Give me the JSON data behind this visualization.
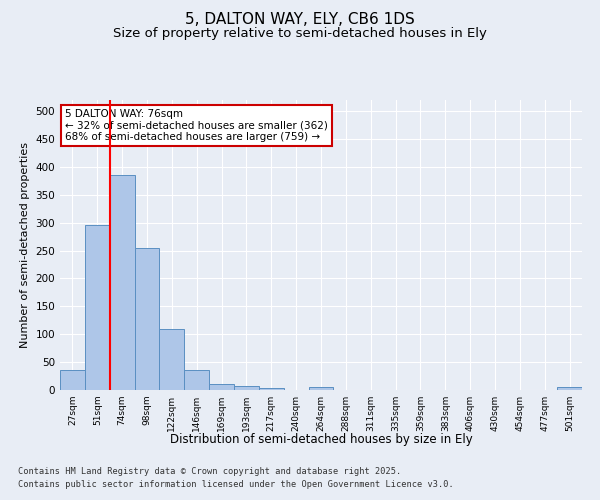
{
  "title": "5, DALTON WAY, ELY, CB6 1DS",
  "subtitle": "Size of property relative to semi-detached houses in Ely",
  "xlabel": "Distribution of semi-detached houses by size in Ely",
  "ylabel": "Number of semi-detached properties",
  "categories": [
    "27sqm",
    "51sqm",
    "74sqm",
    "98sqm",
    "122sqm",
    "146sqm",
    "169sqm",
    "193sqm",
    "217sqm",
    "240sqm",
    "264sqm",
    "288sqm",
    "311sqm",
    "335sqm",
    "359sqm",
    "383sqm",
    "406sqm",
    "430sqm",
    "454sqm",
    "477sqm",
    "501sqm"
  ],
  "values": [
    35,
    295,
    385,
    255,
    110,
    35,
    10,
    7,
    4,
    0,
    5,
    0,
    0,
    0,
    0,
    0,
    0,
    0,
    0,
    0,
    5
  ],
  "bar_color": "#aec6e8",
  "bar_edge_color": "#5a8fc2",
  "red_line_bin": 2,
  "annotation_line1": "5 DALTON WAY: 76sqm",
  "annotation_line2": "← 32% of semi-detached houses are smaller (362)",
  "annotation_line3": "68% of semi-detached houses are larger (759) →",
  "annotation_box_color": "#ffffff",
  "annotation_box_edge": "#cc0000",
  "annotation_fontsize": 7.5,
  "ylim": [
    0,
    520
  ],
  "yticks": [
    0,
    50,
    100,
    150,
    200,
    250,
    300,
    350,
    400,
    450,
    500
  ],
  "background_color": "#e8edf5",
  "grid_color": "#ffffff",
  "footer_line1": "Contains HM Land Registry data © Crown copyright and database right 2025.",
  "footer_line2": "Contains public sector information licensed under the Open Government Licence v3.0.",
  "title_fontsize": 11,
  "subtitle_fontsize": 9.5,
  "ylabel_fontsize": 8,
  "xlabel_fontsize": 8.5
}
